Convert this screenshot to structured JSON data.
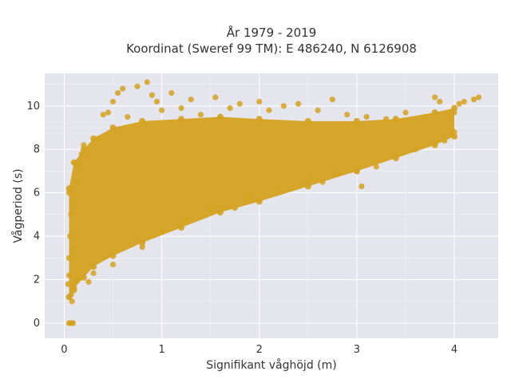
{
  "chart_data": {
    "type": "scatter",
    "title": [
      "År 1979 - 2019",
      "Koordinat (Sweref 99 TM): E 486240, N 6126908"
    ],
    "xlabel": "Signifikant våghöjd (m)",
    "ylabel": "Vågperiod (s)",
    "xlim": [
      -0.2,
      4.45
    ],
    "ylim": [
      -0.7,
      11.5
    ],
    "x_ticks": [
      0,
      1,
      2,
      3,
      4
    ],
    "y_ticks": [
      0,
      2,
      4,
      6,
      8,
      10
    ],
    "x_tick_labels": [
      "0",
      "1",
      "2",
      "3",
      "4"
    ],
    "y_tick_labels": [
      "0",
      "2",
      "4",
      "6",
      "8",
      "10"
    ],
    "grid": true,
    "marker_color": "#d4a21f",
    "background_color": "#e5e5ee",
    "series": [
      {
        "points": [
          [
            0.05,
            0.0
          ],
          [
            0.06,
            0.0
          ],
          [
            0.08,
            0.0
          ],
          [
            0.09,
            0.0
          ],
          [
            0.04,
            1.8
          ],
          [
            0.05,
            2.2
          ],
          [
            0.07,
            1.3
          ],
          [
            0.08,
            1.0
          ],
          [
            0.05,
            3.0
          ],
          [
            0.06,
            4.0
          ],
          [
            0.07,
            5.0
          ],
          [
            0.08,
            5.5
          ],
          [
            0.05,
            6.0
          ],
          [
            0.1,
            1.5
          ],
          [
            0.12,
            2.0
          ],
          [
            0.1,
            3.5
          ],
          [
            0.12,
            6.5
          ],
          [
            0.15,
            7.3
          ],
          [
            0.18,
            7.8
          ],
          [
            0.2,
            8.2
          ],
          [
            0.25,
            1.9
          ],
          [
            0.3,
            2.3
          ],
          [
            0.35,
            8.5
          ],
          [
            0.4,
            9.6
          ],
          [
            0.45,
            9.7
          ],
          [
            0.5,
            2.7
          ],
          [
            0.5,
            10.2
          ],
          [
            0.55,
            10.6
          ],
          [
            0.6,
            10.8
          ],
          [
            0.65,
            9.5
          ],
          [
            0.75,
            10.9
          ],
          [
            0.85,
            11.1
          ],
          [
            0.8,
            3.5
          ],
          [
            0.9,
            10.5
          ],
          [
            0.95,
            10.2
          ],
          [
            1.0,
            4.2
          ],
          [
            1.0,
            9.8
          ],
          [
            1.1,
            10.6
          ],
          [
            1.2,
            9.9
          ],
          [
            1.25,
            4.8
          ],
          [
            1.3,
            10.3
          ],
          [
            1.4,
            9.6
          ],
          [
            1.5,
            5.2
          ],
          [
            1.55,
            10.4
          ],
          [
            1.7,
            9.9
          ],
          [
            1.75,
            5.3
          ],
          [
            1.8,
            10.1
          ],
          [
            1.9,
            5.8
          ],
          [
            2.0,
            10.2
          ],
          [
            2.1,
            9.8
          ],
          [
            2.2,
            6.2
          ],
          [
            2.25,
            10.0
          ],
          [
            2.4,
            10.1
          ],
          [
            2.5,
            6.6
          ],
          [
            2.6,
            9.8
          ],
          [
            2.65,
            6.5
          ],
          [
            2.75,
            10.3
          ],
          [
            2.8,
            6.9
          ],
          [
            2.9,
            9.6
          ],
          [
            3.0,
            7.0
          ],
          [
            3.05,
            6.3
          ],
          [
            3.1,
            9.5
          ],
          [
            3.2,
            7.2
          ],
          [
            3.3,
            9.4
          ],
          [
            3.4,
            7.7
          ],
          [
            3.5,
            9.7
          ],
          [
            3.6,
            8.0
          ],
          [
            3.7,
            9.5
          ],
          [
            3.8,
            10.4
          ],
          [
            3.85,
            10.2
          ],
          [
            3.9,
            8.4
          ],
          [
            3.95,
            9.5
          ],
          [
            4.0,
            8.8
          ],
          [
            4.0,
            9.7
          ],
          [
            4.05,
            10.1
          ],
          [
            4.1,
            10.2
          ],
          [
            4.2,
            10.3
          ],
          [
            4.25,
            10.4
          ]
        ],
        "upper_envelope": [
          [
            0.05,
            6.2
          ],
          [
            0.1,
            7.4
          ],
          [
            0.2,
            8.0
          ],
          [
            0.3,
            8.5
          ],
          [
            0.5,
            9.0
          ],
          [
            0.8,
            9.3
          ],
          [
            1.2,
            9.4
          ],
          [
            1.6,
            9.5
          ],
          [
            2.0,
            9.4
          ],
          [
            2.5,
            9.3
          ],
          [
            3.0,
            9.3
          ],
          [
            3.4,
            9.4
          ],
          [
            3.8,
            9.7
          ],
          [
            4.0,
            9.9
          ]
        ],
        "lower_envelope": [
          [
            0.05,
            1.2
          ],
          [
            0.1,
            1.6
          ],
          [
            0.2,
            2.1
          ],
          [
            0.3,
            2.6
          ],
          [
            0.5,
            3.1
          ],
          [
            0.8,
            3.7
          ],
          [
            1.2,
            4.4
          ],
          [
            1.6,
            5.1
          ],
          [
            2.0,
            5.6
          ],
          [
            2.5,
            6.3
          ],
          [
            3.0,
            7.0
          ],
          [
            3.4,
            7.6
          ],
          [
            3.8,
            8.2
          ],
          [
            4.0,
            8.6
          ]
        ]
      }
    ]
  }
}
